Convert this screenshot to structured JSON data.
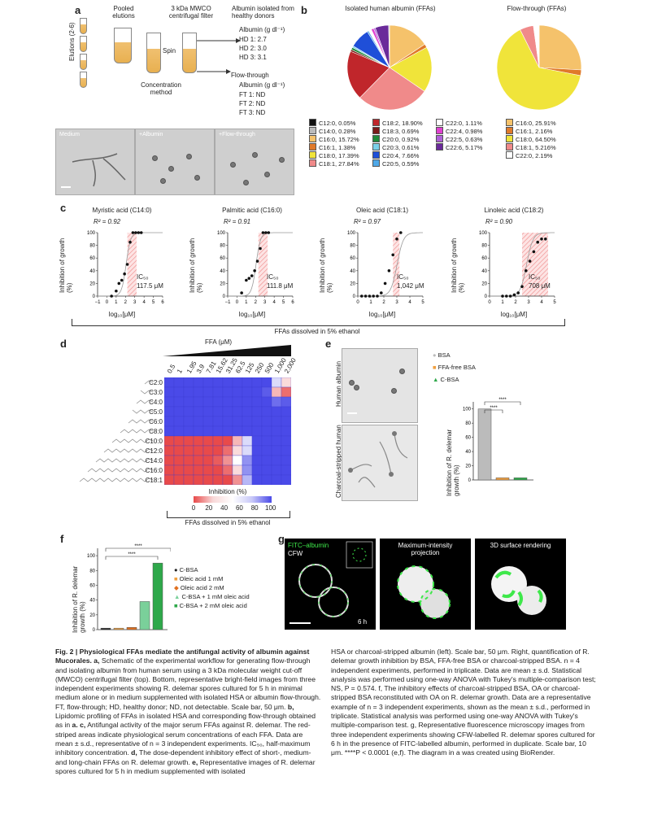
{
  "panel_a": {
    "letter": "a",
    "elutions_label": "Elutions (2-6)",
    "pooled_label": "Pooled elutions",
    "filter_label": "3 kDa MWCO centrifugal filter",
    "spin_label": "Spin",
    "concentration_label": "Concentration method",
    "albumin_title": "Albumin isolated from healthy donors",
    "albumin_unit": "Albumin (g dl⁻¹)",
    "albumin_values": [
      "HD 1: 2.7",
      "HD 2: 3.0",
      "HD 3: 3.1"
    ],
    "flowthrough_title": "Flow-through",
    "flowthrough_unit": "Albumin (g dl⁻¹)",
    "flowthrough_values": [
      "FT 1: ND",
      "FT 2: ND",
      "FT 3: ND"
    ],
    "photo_labels": [
      "Medium",
      "+Albumin",
      "+Flow-through"
    ]
  },
  "panel_b": {
    "letter": "b",
    "left_title": "Isolated human albumin (FFAs)",
    "right_title": "Flow-through (FFAs)",
    "left_legend": [
      {
        "label": "C12:0, 0.05%",
        "color": "#111111"
      },
      {
        "label": "C14:0, 0.28%",
        "color": "#bbbbbb"
      },
      {
        "label": "C16:0, 15.72%",
        "color": "#f5c26b"
      },
      {
        "label": "C16:1, 1.38%",
        "color": "#e07a2a"
      },
      {
        "label": "C18:0, 17.39%",
        "color": "#f0e43a"
      },
      {
        "label": "C18:1, 27.84%",
        "color": "#f08a8a"
      },
      {
        "label": "C18:2, 18.90%",
        "color": "#c0262b"
      },
      {
        "label": "C18:3, 0.69%",
        "color": "#7a1a1a"
      },
      {
        "label": "C20:0, 0.92%",
        "color": "#1f8a3a"
      },
      {
        "label": "C20:3, 0.61%",
        "color": "#7ad0e8"
      },
      {
        "label": "C20:4, 7.66%",
        "color": "#1f4fd8"
      },
      {
        "label": "C20:5, 0.59%",
        "color": "#4fa8e8"
      },
      {
        "label": "C22:0, 1.11%",
        "color": "#ffffff"
      },
      {
        "label": "C22:4, 0.98%",
        "color": "#e040d0"
      },
      {
        "label": "C22:5, 0.63%",
        "color": "#b060d8"
      },
      {
        "label": "C22:6, 5.17%",
        "color": "#6a2a9a"
      }
    ],
    "right_legend": [
      {
        "label": "C16:0, 25.91%",
        "color": "#f5c26b"
      },
      {
        "label": "C16:1, 2.16%",
        "color": "#e07a2a"
      },
      {
        "label": "C18:0, 64.50%",
        "color": "#f0e43a"
      },
      {
        "label": "C18:1, 5.216%",
        "color": "#f08a8a"
      },
      {
        "label": "C22:0, 2.19%",
        "color": "#ffffff"
      }
    ],
    "left_slices": [
      {
        "value": 15.72,
        "color": "#f5c26b"
      },
      {
        "value": 1.38,
        "color": "#e07a2a"
      },
      {
        "value": 17.39,
        "color": "#f0e43a"
      },
      {
        "value": 27.84,
        "color": "#f08a8a"
      },
      {
        "value": 18.9,
        "color": "#c0262b"
      },
      {
        "value": 0.69,
        "color": "#7a1a1a"
      },
      {
        "value": 0.92,
        "color": "#1f8a3a"
      },
      {
        "value": 0.61,
        "color": "#7ad0e8"
      },
      {
        "value": 7.66,
        "color": "#1f4fd8"
      },
      {
        "value": 0.59,
        "color": "#4fa8e8"
      },
      {
        "value": 1.11,
        "color": "#ffffff"
      },
      {
        "value": 0.98,
        "color": "#e040d0"
      },
      {
        "value": 0.63,
        "color": "#b060d8"
      },
      {
        "value": 5.17,
        "color": "#6a2a9a"
      },
      {
        "value": 0.33,
        "color": "#bbbbbb"
      }
    ],
    "right_slices": [
      {
        "value": 25.91,
        "color": "#f5c26b"
      },
      {
        "value": 2.16,
        "color": "#e07a2a"
      },
      {
        "value": 64.5,
        "color": "#f0e43a"
      },
      {
        "value": 5.216,
        "color": "#f08a8a"
      },
      {
        "value": 2.19,
        "color": "#ffffff"
      }
    ]
  },
  "panel_c": {
    "letter": "c",
    "ylabel": "Inhibition of growth (%)",
    "xlabel": "log₁₀[μM]",
    "bracket_label": "FFAs dissolved in 5% ethanol",
    "plots": [
      {
        "title": "Myristic acid (C14:0)",
        "r2": "R² = 0.92",
        "ic50": "IC₅₀",
        "ic50_value": "117.5 μM"
      },
      {
        "title": "Palmitic acid (C16:0)",
        "r2": "R² = 0.91",
        "ic50": "IC₅₀",
        "ic50_value": "111.8 μM"
      },
      {
        "title": "Oleic acid (C18:1)",
        "r2": "R² = 0.97",
        "ic50": "IC₅₀",
        "ic50_value": "1,042 μM"
      },
      {
        "title": "Linoleic acid (C18:2)",
        "r2": "R² = 0.90",
        "ic50": "IC₅₀",
        "ic50_value": "708 μM"
      }
    ],
    "x_ticks_a": [
      "−1",
      "0",
      "1",
      "2",
      "3",
      "4",
      "5",
      "6"
    ],
    "x_ticks_b": [
      "0",
      "1",
      "2",
      "3",
      "4",
      "5"
    ],
    "y_ticks": [
      "0",
      "20",
      "40",
      "60",
      "80",
      "100"
    ]
  },
  "panel_d": {
    "letter": "d",
    "ffa_label": "FFA (μM)",
    "concentrations": [
      "0.5",
      "1",
      "1.95",
      "3.9",
      "7.81",
      "15.62",
      "31.25",
      "62.5",
      "125",
      "250",
      "500",
      "1,000",
      "2,000"
    ],
    "rows": [
      "C2:0",
      "C3:0",
      "C4:0",
      "C5:0",
      "C6:0",
      "C8:0",
      "C10:0",
      "C12:0",
      "C14:0",
      "C16:0",
      "C18:1"
    ],
    "scale_label": "Inhibition (%)",
    "scale_ticks": [
      "0",
      "20",
      "40",
      "60",
      "80",
      "100"
    ],
    "bracket_label": "FFAs dissolved in 5% ethanol"
  },
  "panel_e": {
    "letter": "e",
    "row_labels": [
      "Human albumin",
      "Charcoal-stripped human albumin"
    ],
    "legend": [
      "BSA",
      "FFA-free BSA",
      "C-BSA"
    ],
    "legend_colors": [
      "#bbbbbb",
      "#f0a040",
      "#2ea84a"
    ],
    "ylabel": "Inhibition of R. delemar growth (%)",
    "y_ticks": [
      "0",
      "20",
      "40",
      "60",
      "80",
      "100"
    ],
    "sig": [
      "****",
      "****"
    ]
  },
  "panel_f": {
    "letter": "f",
    "ylabel": "Inhibition of R. delemar growth (%)",
    "y_ticks": [
      "0",
      "20",
      "40",
      "60",
      "80",
      "100"
    ],
    "legend": [
      "C-BSA",
      "Oleic acid 1 mM",
      "Oleic acid 2 mM",
      "C-BSA + 1 mM oleic acid",
      "C-BSA + 2 mM oleic acid"
    ],
    "legend_colors": [
      "#222222",
      "#f0a040",
      "#e07020",
      "#7ad09a",
      "#2ea84a"
    ],
    "sig": [
      "****",
      "****"
    ]
  },
  "panel_g": {
    "letter": "g",
    "labels": [
      "FITC–albumin",
      "CFW",
      "Maximum-intensity projection",
      "3D surface rendering",
      "6 h"
    ]
  },
  "chart_data": [
    {
      "type": "scatter",
      "title": "Myristic acid (C14:0)",
      "xlabel": "log10[μM]",
      "ylabel": "Inhibition of growth (%)",
      "xlim": [
        -1,
        6
      ],
      "ylim": [
        0,
        100
      ],
      "x": [
        0.5,
        1.0,
        1.3,
        1.6,
        1.9,
        2.2,
        2.5,
        2.8,
        3.1,
        3.4,
        3.7
      ],
      "y": [
        0,
        8,
        20,
        25,
        35,
        50,
        85,
        100,
        100,
        100,
        100
      ]
    },
    {
      "type": "scatter",
      "title": "Palmitic acid (C16:0)",
      "xlabel": "log10[μM]",
      "ylabel": "Inhibition of growth (%)",
      "xlim": [
        -1,
        6
      ],
      "ylim": [
        0,
        100
      ],
      "x": [
        0.5,
        1.0,
        1.3,
        1.6,
        1.9,
        2.2,
        2.5,
        2.8,
        3.1,
        3.4
      ],
      "y": [
        5,
        25,
        28,
        32,
        40,
        55,
        75,
        100,
        100,
        100
      ]
    },
    {
      "type": "scatter",
      "title": "Oleic acid (C18:1)",
      "xlabel": "log10[μM]",
      "ylabel": "Inhibition of growth (%)",
      "xlim": [
        0,
        5
      ],
      "ylim": [
        0,
        100
      ],
      "x": [
        0.3,
        0.6,
        0.9,
        1.2,
        1.5,
        1.8,
        2.1,
        2.4,
        2.7,
        3.0,
        3.3
      ],
      "y": [
        0,
        0,
        0,
        0,
        0,
        5,
        20,
        40,
        65,
        90,
        100
      ]
    },
    {
      "type": "scatter",
      "title": "Linoleic acid (C18:2)",
      "xlabel": "log10[μM]",
      "ylabel": "Inhibition of growth (%)",
      "xlim": [
        0,
        5
      ],
      "ylim": [
        0,
        100
      ],
      "x": [
        1.0,
        1.3,
        1.6,
        1.9,
        2.2,
        2.5,
        2.8,
        3.1,
        3.4,
        3.7,
        4.0,
        4.3
      ],
      "y": [
        0,
        0,
        0,
        2,
        5,
        15,
        40,
        55,
        70,
        85,
        90,
        90
      ]
    },
    {
      "type": "heatmap",
      "title": "",
      "xlabel": "FFA (μM)",
      "ylabel": "",
      "x": [
        "0.5",
        "1",
        "1.95",
        "3.9",
        "7.81",
        "15.62",
        "31.25",
        "62.5",
        "125",
        "250",
        "500",
        "1,000",
        "2,000"
      ],
      "y": [
        "C2:0",
        "C3:0",
        "C4:0",
        "C5:0",
        "C6:0",
        "C8:0",
        "C10:0",
        "C12:0",
        "C14:0",
        "C16:0",
        "C18:1"
      ],
      "values": [
        [
          100,
          100,
          100,
          100,
          100,
          100,
          100,
          100,
          100,
          100,
          100,
          60,
          40
        ],
        [
          100,
          100,
          100,
          100,
          100,
          100,
          100,
          100,
          100,
          100,
          95,
          30,
          10
        ],
        [
          100,
          100,
          100,
          100,
          100,
          100,
          100,
          100,
          100,
          100,
          100,
          90,
          95
        ],
        [
          100,
          100,
          100,
          100,
          100,
          100,
          100,
          100,
          100,
          100,
          100,
          100,
          100
        ],
        [
          100,
          100,
          100,
          100,
          100,
          100,
          100,
          100,
          100,
          100,
          100,
          100,
          100
        ],
        [
          100,
          100,
          100,
          100,
          100,
          100,
          100,
          100,
          100,
          100,
          100,
          100,
          100
        ],
        [
          0,
          0,
          0,
          0,
          0,
          0,
          0,
          30,
          60,
          100,
          100,
          100,
          100
        ],
        [
          0,
          0,
          0,
          0,
          0,
          0,
          10,
          40,
          60,
          100,
          100,
          100,
          100
        ],
        [
          0,
          0,
          0,
          0,
          0,
          5,
          20,
          50,
          80,
          100,
          100,
          100,
          100
        ],
        [
          0,
          0,
          0,
          0,
          0,
          0,
          10,
          40,
          80,
          100,
          100,
          100,
          100
        ],
        [
          0,
          0,
          0,
          0,
          0,
          0,
          0,
          20,
          70,
          100,
          100,
          100,
          100
        ]
      ]
    },
    {
      "type": "bar",
      "title": "",
      "categories": [
        "BSA",
        "FFA-free BSA",
        "C-BSA"
      ],
      "values": [
        100,
        3,
        3
      ],
      "ylabel": "Inhibition of R. delemar growth (%)",
      "ylim": [
        0,
        110
      ]
    },
    {
      "type": "bar",
      "title": "",
      "categories": [
        "C-BSA",
        "Oleic acid 1 mM",
        "Oleic acid 2 mM",
        "C-BSA + 1 mM oleic acid",
        "C-BSA + 2 mM oleic acid"
      ],
      "values": [
        2,
        2,
        3,
        38,
        90
      ],
      "ylabel": "Inhibition of R. delemar growth (%)",
      "ylim": [
        0,
        110
      ]
    }
  ],
  "caption": {
    "left": [
      {
        "b": "Fig. 2 | Physiological FFAs mediate the antifungal activity of albumin against Mucorales. a,",
        "t": " Schematic of the experimental workflow for generating flow-through and isolating albumin from human serum using a 3 kDa molecular weight cut-off (MWCO) centrifugal filter (top). Bottom, representative bright-field images from three independent experiments showing R. delemar spores cultured for 5 h in minimal medium alone or in medium supplemented with isolated HSA or albumin flow-through. FT, flow-through; HD, healthy donor; ND, not detectable. Scale bar, 50 μm. "
      },
      {
        "b": "b,",
        "t": " Lipidomic profiling of FFAs in isolated HSA and corresponding flow-through obtained as in "
      },
      {
        "b": "a. c,",
        "t": " Antifungal activity of the major serum FFAs against R. delemar. The red-striped areas indicate physiological serum concentrations of each FFA. Data are mean ± s.d., representative of n = 3 independent experiments. IC₅₀, half-maximum inhibitory concentration. "
      },
      {
        "b": "d,",
        "t": " The dose-dependent inhibitory effect of short-, medium- and long-chain FFAs on R. delemar growth. "
      },
      {
        "b": "e,",
        "t": " Representative images of R. delemar spores cultured for 5 h in medium supplemented with isolated"
      }
    ],
    "right": "HSA or charcoal-stripped albumin (left). Scale bar, 50 μm. Right, quantification of R. delemar growth inhibition by BSA, FFA-free BSA or charcoal-stripped BSA. n = 4 independent experiments, performed in triplicate. Data are mean ± s.d. Statistical analysis was performed using one-way ANOVA with Tukey's multiple-comparison test; NS, P = 0.574. f, The inhibitory effects of charcoal-stripped BSA, OA or charcoal-stripped BSA reconstituted with OA on R. delemar growth. Data are a representative example of n = 3 independent experiments, shown as the mean ± s.d., performed in triplicate. Statistical analysis was performed using one-way ANOVA with Tukey's multiple-comparison test. g, Representative fluorescence microscopy images from three independent experiments showing CFW-labelled R. delemar spores cultured for 6 h in the presence of FITC-labelled albumin, performed in duplicate. Scale bar, 10 μm. ****P < 0.0001 (e,f). The diagram in a was created using BioRender."
  }
}
